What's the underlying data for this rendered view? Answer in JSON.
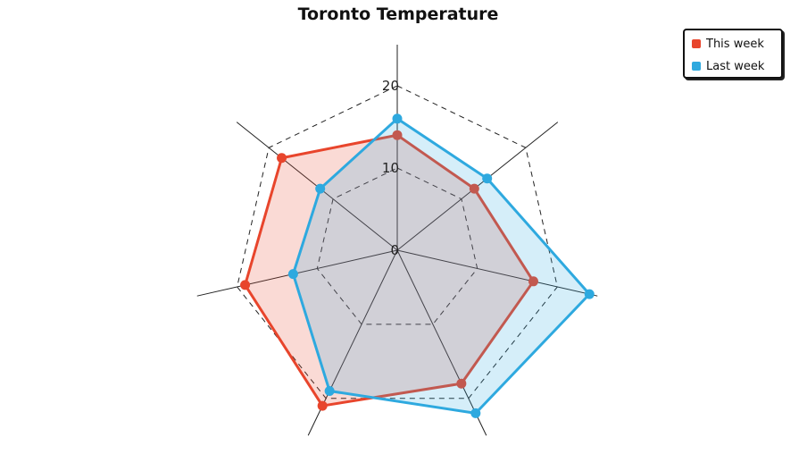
{
  "chart_data": {
    "type": "radar",
    "title": "Toronto Temperature",
    "axes_count": 7,
    "r_ticks": [
      "0",
      "10",
      "20"
    ],
    "r_tick_values": [
      0,
      10,
      20
    ],
    "r_max": 25,
    "gridlines": "dashed",
    "legend_position": "top-right",
    "series": [
      {
        "name": "This week",
        "color": "#E8452C",
        "values": [
          14,
          12,
          17,
          18,
          21,
          19,
          18
        ]
      },
      {
        "name": "Last week",
        "color": "#2EA9DF",
        "values": [
          16,
          14,
          24,
          22,
          19,
          13,
          12
        ]
      }
    ]
  }
}
